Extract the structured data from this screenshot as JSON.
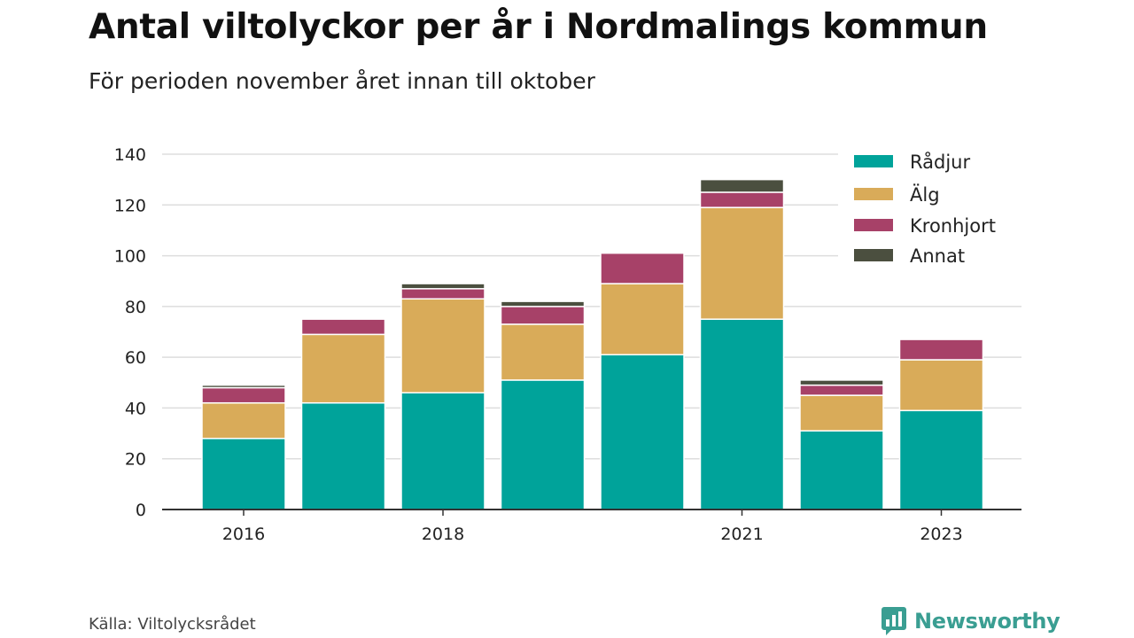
{
  "title": "Antal viltolyckor per år i Nordmalings kommun",
  "subtitle": "För perioden november året innan till oktober",
  "source": "Källa: Viltolycksrådet",
  "brand": "Newsworthy",
  "chart_data": {
    "type": "bar",
    "stacked": true,
    "categories": [
      "2016",
      "2017",
      "2018",
      "2019",
      "2020",
      "2021",
      "2022",
      "2023"
    ],
    "x_tick_labels": [
      "2016",
      "2018",
      "2021",
      "2023"
    ],
    "x_tick_positions": [
      "2016",
      "2018",
      "2021",
      "2023"
    ],
    "y_ticks": [
      "0",
      "20",
      "40",
      "60",
      "80",
      "100",
      "120",
      "140"
    ],
    "ylim": [
      0,
      140
    ],
    "grid": true,
    "legend_position": "top-right",
    "series": [
      {
        "name": "Rådjur",
        "color": "#00a39a",
        "values": [
          28,
          42,
          46,
          51,
          61,
          75,
          31,
          39
        ]
      },
      {
        "name": "Älg",
        "color": "#d9ab59",
        "values": [
          14,
          27,
          37,
          22,
          28,
          44,
          14,
          20
        ]
      },
      {
        "name": "Kronhjort",
        "color": "#a74168",
        "values": [
          6,
          6,
          4,
          7,
          12,
          6,
          4,
          8
        ]
      },
      {
        "name": "Annat",
        "color": "#4b4f3f",
        "values": [
          1,
          0,
          2,
          2,
          0,
          5,
          2,
          0
        ]
      }
    ]
  }
}
